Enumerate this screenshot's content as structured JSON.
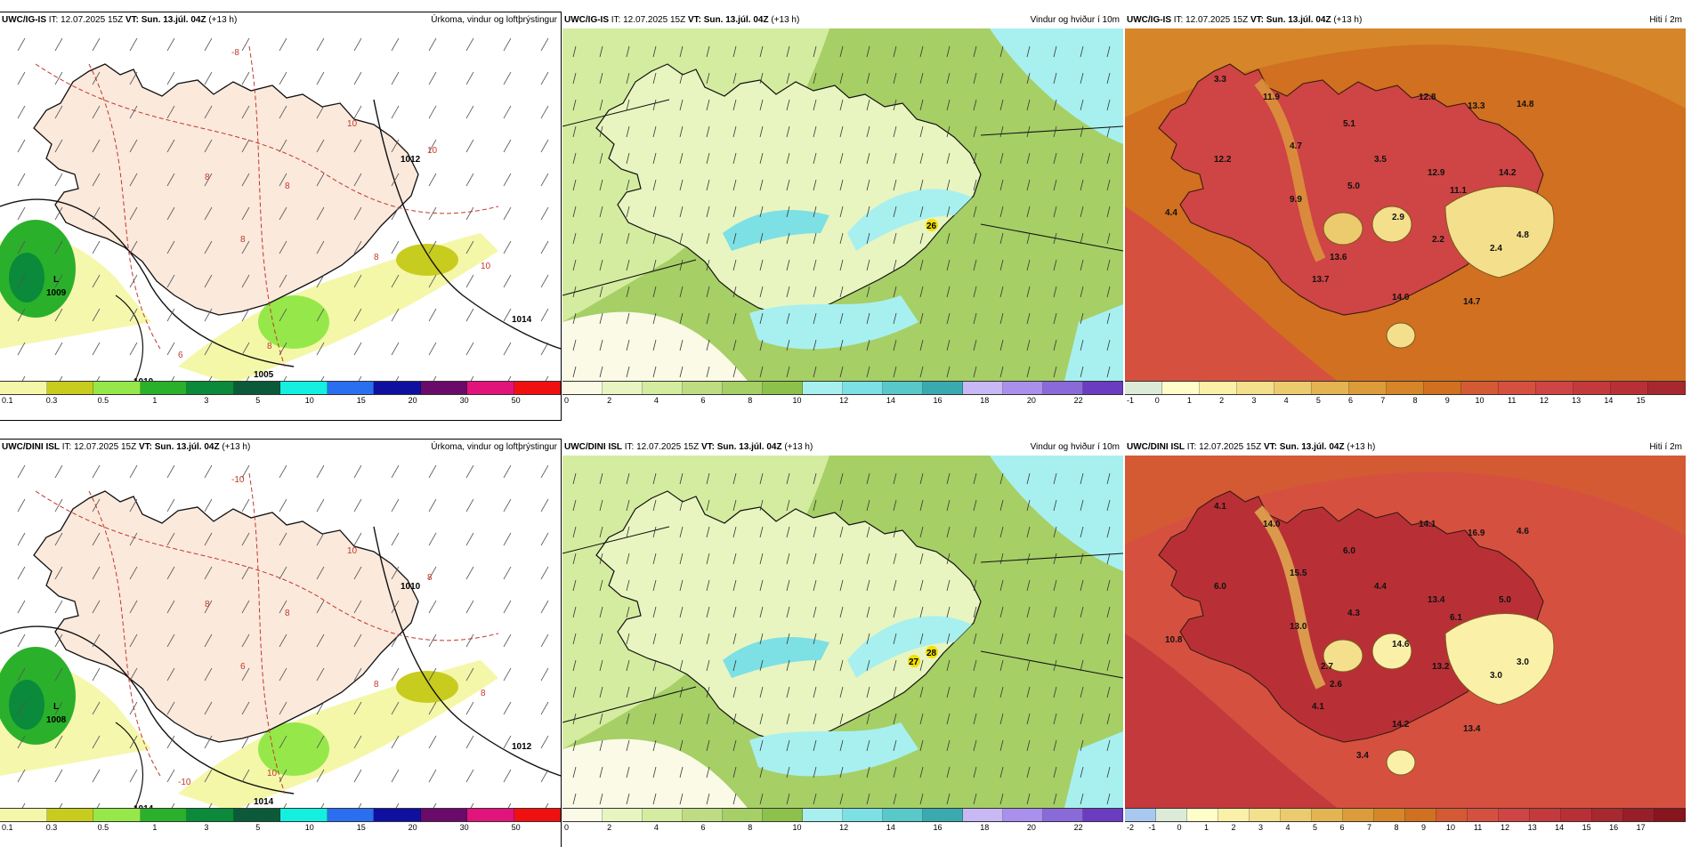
{
  "panels": [
    {
      "id": "ig-precip",
      "model": "UWC/IG-IS",
      "it_label": "IT:",
      "issue": "12.07.2025 15Z",
      "vt_label": "VT:",
      "valid": "Sun. 13.júl. 04Z",
      "lead": "(+13 h)",
      "title": "Úrkoma, vindur og loftþrýstingur",
      "type": "precip",
      "legend": {
        "colors": [
          "#f4f7a8",
          "#c8cc1e",
          "#96e84a",
          "#2bb02b",
          "#0a8a3a",
          "#0b5a3a",
          "#14f0e0",
          "#2a6ff0",
          "#1010a0",
          "#6a0a6a",
          "#e0147a",
          "#f01010"
        ],
        "ticks": [
          "0.1",
          "0.3",
          "0.5",
          "1",
          "3",
          "5",
          "10",
          "15",
          "20",
          "30",
          "50"
        ]
      },
      "labels": {
        "low": "L",
        "low_value": "1009",
        "isobar_a": "1005",
        "isobar_b": "1012",
        "isobar_c": "1014",
        "isobar_d": "1010"
      },
      "precip_values": [
        "-8",
        "10",
        "10",
        "8",
        "8",
        "8",
        "8",
        "10",
        "8",
        "6"
      ]
    },
    {
      "id": "ig-wind",
      "model": "UWC/IG-IS",
      "it_label": "IT:",
      "issue": "12.07.2025 15Z",
      "vt_label": "VT:",
      "valid": "Sun. 13.júl. 04Z",
      "lead": "(+13 h)",
      "title": "Vindur og hviður í 10m",
      "type": "wind",
      "legend": {
        "colors": [
          "#fafae6",
          "#e8f5c0",
          "#d4eca0",
          "#bedd82",
          "#a6cf66",
          "#8cc24c",
          "#a8f0f0",
          "#7de0e4",
          "#58c8c8",
          "#3aaab0",
          "#c8b8f4",
          "#a890ec",
          "#8a6ad8",
          "#6a3cc0"
        ],
        "ticks": [
          "0",
          "2",
          "4",
          "6",
          "8",
          "10",
          "12",
          "14",
          "16",
          "18",
          "20",
          "22"
        ]
      },
      "gust_values": [
        "26"
      ]
    },
    {
      "id": "ig-temp",
      "model": "UWC/IG-IS",
      "it_label": "IT:",
      "issue": "12.07.2025 15Z",
      "vt_label": "VT:",
      "valid": "Sun. 13.júl. 04Z",
      "lead": "(+13 h)",
      "title": "Hiti í 2m",
      "type": "temp",
      "legend": {
        "colors": [
          "#dcebd8",
          "#fffdc8",
          "#fbf0a8",
          "#f4e08c",
          "#ecca6e",
          "#e4b452",
          "#dc9c3a",
          "#d68628",
          "#d07020",
          "#d45a34",
          "#d65040",
          "#cf4444",
          "#c43a3c",
          "#b83036",
          "#a82830"
        ],
        "ticks": [
          "-1",
          "0",
          "1",
          "2",
          "3",
          "4",
          "5",
          "6",
          "7",
          "8",
          "9",
          "10",
          "11",
          "12",
          "13",
          "14",
          "15"
        ]
      },
      "temp_values": [
        "11.9",
        "3.3",
        "12.8",
        "13.3",
        "14.8",
        "5.1",
        "12.2",
        "4.7",
        "3.5",
        "12.9",
        "14.2",
        "11.1",
        "5.0",
        "9.9",
        "4.4",
        "2.9",
        "2.2",
        "4.8",
        "2.4",
        "13.6",
        "13.7",
        "14.0",
        "14.7"
      ]
    },
    {
      "id": "dini-precip",
      "model": "UWC/DINI ISL",
      "it_label": "IT:",
      "issue": "12.07.2025 15Z",
      "vt_label": "VT:",
      "valid": "Sun. 13.júl. 04Z",
      "lead": "(+13 h)",
      "title": "Úrkoma, vindur og loftþrýstingur",
      "type": "precip",
      "legend": {
        "colors": [
          "#f4f7a8",
          "#c8cc1e",
          "#96e84a",
          "#2bb02b",
          "#0a8a3a",
          "#0b5a3a",
          "#14f0e0",
          "#2a6ff0",
          "#1010a0",
          "#6a0a6a",
          "#e0147a",
          "#f01010"
        ],
        "ticks": [
          "0.1",
          "0.3",
          "0.5",
          "1",
          "3",
          "5",
          "10",
          "15",
          "20",
          "30",
          "50"
        ]
      },
      "labels": {
        "low": "L",
        "low_value": "1008",
        "isobar_a": "1014",
        "isobar_b": "1010",
        "isobar_c": "1012",
        "isobar_d": "1014"
      },
      "precip_values": [
        "-10",
        "10",
        "8",
        "8",
        "8",
        "6",
        "8",
        "8",
        "10",
        "-10"
      ]
    },
    {
      "id": "dini-wind",
      "model": "UWC/DINI ISL",
      "it_label": "IT:",
      "issue": "12.07.2025 15Z",
      "vt_label": "VT:",
      "valid": "Sun. 13.júl. 04Z",
      "lead": "(+13 h)",
      "title": "Vindur og hviður í 10m",
      "type": "wind",
      "legend": {
        "colors": [
          "#fafae6",
          "#e8f5c0",
          "#d4eca0",
          "#bedd82",
          "#a6cf66",
          "#8cc24c",
          "#a8f0f0",
          "#7de0e4",
          "#58c8c8",
          "#3aaab0",
          "#c8b8f4",
          "#a890ec",
          "#8a6ad8",
          "#6a3cc0"
        ],
        "ticks": [
          "0",
          "2",
          "4",
          "6",
          "8",
          "10",
          "12",
          "14",
          "16",
          "18",
          "20",
          "22"
        ]
      },
      "gust_values": [
        "28",
        "27"
      ]
    },
    {
      "id": "dini-temp",
      "model": "UWC/DINI ISL",
      "it_label": "IT:",
      "issue": "12.07.2025 15Z",
      "vt_label": "VT:",
      "valid": "Sun. 13.júl. 04Z",
      "lead": "(+13 h)",
      "title": "Hiti í 2m",
      "type": "temp",
      "legend": {
        "colors": [
          "#a8c8f0",
          "#dcebd8",
          "#fffdc8",
          "#fbf0a8",
          "#f4e08c",
          "#ecca6e",
          "#e4b452",
          "#dc9c3a",
          "#d68628",
          "#d07020",
          "#d45a34",
          "#d65040",
          "#cf4444",
          "#c43a3c",
          "#b83036",
          "#a82830",
          "#981e2a",
          "#88141e"
        ],
        "ticks": [
          "-2",
          "-1",
          "0",
          "1",
          "2",
          "3",
          "4",
          "5",
          "6",
          "7",
          "8",
          "9",
          "10",
          "11",
          "12",
          "13",
          "14",
          "15",
          "16",
          "17"
        ]
      },
      "temp_values": [
        "14.0",
        "4.1",
        "14.1",
        "16.9",
        "4.6",
        "6.0",
        "6.0",
        "15.5",
        "4.4",
        "13.4",
        "5.0",
        "6.1",
        "4.3",
        "13.0",
        "10.8",
        "14.6",
        "13.2",
        "3.0",
        "3.0",
        "2.6",
        "4.1",
        "14.2",
        "13.4",
        "3.4",
        "2.7"
      ]
    }
  ]
}
